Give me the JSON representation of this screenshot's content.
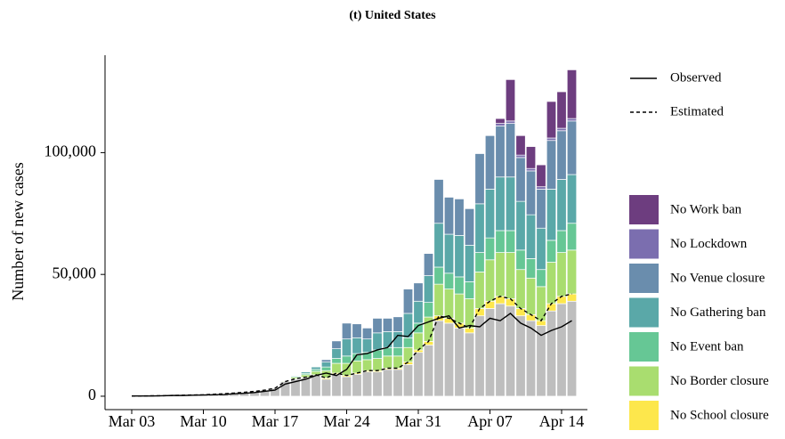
{
  "chart_data": {
    "type": "bar",
    "stacked": true,
    "title": "(t) United States",
    "y_label": "Number of new cases",
    "categories": [
      "Mar 03",
      null,
      null,
      null,
      null,
      null,
      null,
      "Mar 10",
      null,
      null,
      null,
      null,
      null,
      null,
      "Mar 17",
      null,
      null,
      null,
      null,
      null,
      null,
      "Mar 24",
      null,
      null,
      null,
      null,
      null,
      null,
      "Mar 31",
      null,
      null,
      null,
      null,
      null,
      null,
      "Apr 07",
      null,
      null,
      null,
      null,
      null,
      null,
      "Apr 14",
      null
    ],
    "ylim": [
      -5500,
      140000
    ],
    "yticks": [
      0,
      {
        "value": 50000,
        "label": "50,000"
      },
      {
        "value": 100000,
        "label": "100,000"
      }
    ],
    "series": [
      {
        "color": "#bebebe",
        "values": [
          100,
          100,
          200,
          200,
          300,
          400,
          500,
          600,
          800,
          1000,
          1300,
          1600,
          2000,
          2500,
          3200,
          6000,
          7000,
          7500,
          8500,
          7000,
          9000,
          8000,
          9000,
          10000,
          10000,
          11000,
          11000,
          13000,
          18000,
          21000,
          31000,
          30000,
          28000,
          26000,
          33000,
          36000,
          38000,
          37000,
          33000,
          31000,
          29000,
          35000,
          38000,
          39000
        ]
      },
      {
        "name": "No School closure",
        "color": "#fde74c",
        "values": [
          0,
          0,
          0,
          0,
          0,
          0,
          0,
          0,
          0,
          0,
          0,
          0,
          0,
          0,
          100,
          0,
          200,
          300,
          300,
          500,
          500,
          500,
          500,
          500,
          500,
          500,
          500,
          1000,
          1000,
          1500,
          2000,
          2000,
          2000,
          2000,
          3000,
          3000,
          3000,
          3000,
          3000,
          2500,
          2000,
          3000,
          3000,
          3000
        ]
      },
      {
        "name": "No Border closure",
        "color": "#a9dd6f",
        "values": [
          0,
          0,
          0,
          0,
          0,
          0,
          0,
          0,
          0,
          0,
          0,
          0,
          0,
          0,
          100,
          300,
          600,
          1000,
          1400,
          3000,
          4000,
          5000,
          5000,
          4500,
          5000,
          5000,
          5000,
          6000,
          7000,
          10000,
          13000,
          12000,
          12000,
          12000,
          15000,
          17000,
          18000,
          19000,
          16000,
          15000,
          14000,
          17000,
          18000,
          18000
        ]
      },
      {
        "name": "No Event ban",
        "color": "#66c795",
        "values": [
          0,
          0,
          0,
          0,
          0,
          0,
          0,
          0,
          0,
          0,
          0,
          0,
          0,
          0,
          100,
          200,
          400,
          600,
          800,
          1500,
          2000,
          3000,
          3000,
          3000,
          3500,
          3500,
          3500,
          4000,
          4000,
          6000,
          7000,
          6500,
          7000,
          7000,
          8000,
          9000,
          9000,
          9000,
          8000,
          8000,
          7000,
          9000,
          9000,
          11000
        ]
      },
      {
        "name": "No Gathering ban",
        "color": "#5aa8a8",
        "values": [
          0,
          0,
          0,
          0,
          0,
          0,
          0,
          0,
          0,
          0,
          0,
          0,
          0,
          0,
          0,
          0,
          300,
          600,
          1000,
          2000,
          4000,
          7000,
          6500,
          5500,
          7000,
          6500,
          6500,
          10000,
          9000,
          11000,
          18000,
          16000,
          17000,
          15000,
          20000,
          20000,
          22000,
          22000,
          20000,
          18000,
          17000,
          21000,
          21000,
          20000
        ]
      },
      {
        "name": "No Venue closure",
        "color": "#6a8dad",
        "values": [
          0,
          0,
          0,
          0,
          0,
          0,
          0,
          0,
          0,
          0,
          0,
          0,
          0,
          0,
          0,
          0,
          0,
          0,
          0,
          1000,
          3200,
          6500,
          5700,
          4500,
          6000,
          5500,
          6100,
          10000,
          7500,
          9100,
          18000,
          15200,
          15000,
          15000,
          20600,
          22000,
          21000,
          22000,
          18000,
          18000,
          16000,
          20000,
          20000,
          22000
        ]
      },
      {
        "name": "No Lockdown",
        "color": "#7b6eaf",
        "values": [
          0,
          0,
          0,
          0,
          0,
          0,
          0,
          0,
          0,
          0,
          0,
          0,
          0,
          0,
          0,
          0,
          0,
          0,
          0,
          0,
          0,
          0,
          0,
          0,
          0,
          0,
          0,
          0,
          0,
          0,
          0,
          0,
          0,
          0,
          0,
          0,
          1000,
          1000,
          1000,
          1000,
          1000,
          1000,
          1000,
          1000
        ]
      },
      {
        "name": "No Work ban",
        "color": "#6d3d7f",
        "values": [
          0,
          0,
          0,
          0,
          0,
          0,
          0,
          0,
          0,
          0,
          0,
          0,
          0,
          0,
          0,
          0,
          0,
          0,
          0,
          0,
          0,
          0,
          0,
          0,
          0,
          0,
          0,
          0,
          0,
          0,
          0,
          0,
          0,
          0,
          0,
          0,
          2000,
          17000,
          8000,
          9000,
          9000,
          15000,
          15000,
          20000
        ]
      }
    ],
    "lines": [
      {
        "name": "Observed",
        "color": "#000000",
        "linestyle": "solid",
        "values": [
          100,
          100,
          100,
          200,
          300,
          300,
          400,
          500,
          600,
          700,
          1000,
          1200,
          1500,
          2000,
          2500,
          5000,
          6000,
          7000,
          8500,
          9500,
          8500,
          11000,
          17000,
          17500,
          19000,
          20000,
          25000,
          24500,
          29000,
          30500,
          32000,
          33000,
          28000,
          29000,
          28500,
          32000,
          31000,
          34000,
          30000,
          28000,
          25000,
          27000,
          28500,
          31000
        ]
      },
      {
        "name": "Estimated",
        "color": "#000000",
        "linestyle": "dashed",
        "values": [
          100,
          100,
          200,
          200,
          300,
          400,
          500,
          600,
          800,
          1000,
          1300,
          1600,
          2000,
          2500,
          3300,
          6000,
          7200,
          7800,
          8800,
          7500,
          9500,
          8500,
          9500,
          10500,
          10500,
          11500,
          11500,
          14000,
          19000,
          22500,
          33000,
          32000,
          30000,
          28000,
          36000,
          39000,
          41000,
          40000,
          36000,
          33500,
          31000,
          38000,
          41000,
          42000
        ]
      }
    ]
  }
}
